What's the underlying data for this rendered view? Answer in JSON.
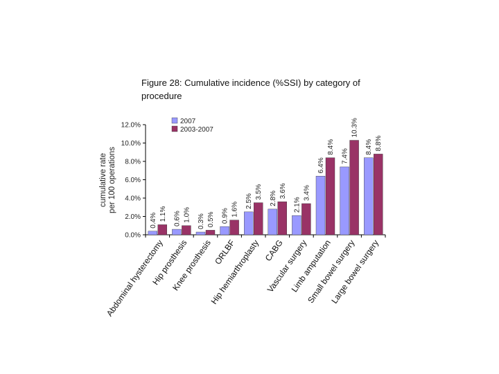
{
  "title": "Figure 28: Cumulative incidence (%SSI) by category of procedure",
  "colors": {
    "series_2007": "#9999ff",
    "series_2003_2007": "#993366",
    "axis": "#000000"
  },
  "chart_data": {
    "type": "bar",
    "title": "Figure 28: Cumulative incidence (%SSI) by category of procedure",
    "xlabel": "",
    "ylabel_lines": [
      "cumulative rate",
      "per 100 operations"
    ],
    "ylim": [
      0,
      12
    ],
    "yticks": [
      0,
      2,
      4,
      6,
      8,
      10,
      12
    ],
    "ytick_labels": [
      "0.0%",
      "2.0%",
      "4.0%",
      "6.0%",
      "8.0%",
      "10.0%",
      "12.0%"
    ],
    "grid": false,
    "legend_position": "top-left",
    "categories": [
      "Abdominal hysterectomy",
      "Hip prosthesis",
      "Knee prosthesis",
      "ORLBF",
      "Hip hemiarthroplasty",
      "CABG",
      "Vascular surgery",
      "Limb amputation",
      "Small bowel surgery",
      "Large bowel surgery"
    ],
    "series": [
      {
        "name": "2007",
        "values": [
          0.4,
          0.6,
          0.3,
          0.9,
          2.5,
          2.8,
          2.1,
          6.4,
          7.4,
          8.4
        ],
        "labels": [
          "0.4%",
          "0.6%",
          "0.3%",
          "0.9%",
          "2.5%",
          "2.8%",
          "2.1%",
          "6.4%",
          "7.4%",
          "8.4%"
        ]
      },
      {
        "name": "2003-2007",
        "values": [
          1.1,
          1.0,
          0.5,
          1.6,
          3.5,
          3.6,
          3.4,
          8.4,
          10.3,
          8.8
        ],
        "labels": [
          "1.1%",
          "1.0%",
          "0.5%",
          "1.6%",
          "3.5%",
          "3.6%",
          "3.4%",
          "8.4%",
          "10.3%",
          "8.8%"
        ]
      }
    ]
  }
}
